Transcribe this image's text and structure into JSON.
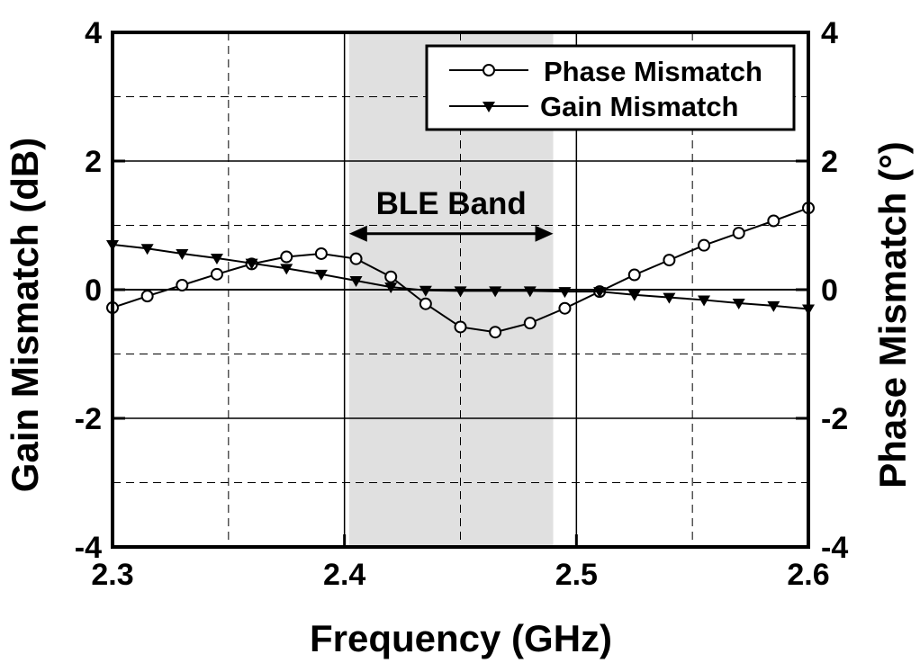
{
  "chart_data": {
    "type": "line",
    "xlabel": "Frequency (GHz)",
    "ylabel_left": "Gain Mismatch (dB)",
    "ylabel_right": "Phase Mismatch (°)",
    "xlim": [
      2.3,
      2.6
    ],
    "ylim_left": [
      -4,
      4
    ],
    "ylim_right": [
      -4,
      4
    ],
    "x_ticks": [
      "2.3",
      "2.4",
      "2.5",
      "2.6"
    ],
    "x_tick_values": [
      2.3,
      2.4,
      2.5,
      2.6
    ],
    "y_ticks_left": [
      "4",
      "2",
      "0",
      "-2",
      "-4"
    ],
    "y_ticks_right": [
      "4",
      "2",
      "0",
      "-2",
      "-4"
    ],
    "y_tick_values": [
      4,
      2,
      0,
      -2,
      -4
    ],
    "grid": true,
    "legend_position": "top-right",
    "shaded_band": {
      "x_start": 2.402,
      "x_end": 2.49,
      "color": "#e0e0e0"
    },
    "band_annotation": {
      "text": "BLE Band",
      "x_start": 2.402,
      "x_end": 2.49,
      "y": 0.87
    },
    "series": [
      {
        "name": "Phase Mismatch",
        "marker": "open-circle",
        "axis": "right",
        "x": [
          2.3,
          2.315,
          2.33,
          2.345,
          2.36,
          2.375,
          2.39,
          2.405,
          2.42,
          2.435,
          2.45,
          2.465,
          2.48,
          2.495,
          2.51,
          2.525,
          2.54,
          2.555,
          2.57,
          2.585,
          2.6
        ],
        "values": [
          -0.28,
          -0.1,
          0.07,
          0.24,
          0.4,
          0.51,
          0.56,
          0.48,
          0.2,
          -0.22,
          -0.58,
          -0.66,
          -0.52,
          -0.29,
          -0.03,
          0.23,
          0.46,
          0.69,
          0.88,
          1.07,
          1.27
        ]
      },
      {
        "name": "Gain Mismatch",
        "marker": "filled-down-triangle",
        "axis": "left",
        "x": [
          2.3,
          2.315,
          2.33,
          2.345,
          2.36,
          2.375,
          2.39,
          2.405,
          2.42,
          2.435,
          2.45,
          2.465,
          2.48,
          2.495,
          2.51,
          2.525,
          2.54,
          2.555,
          2.57,
          2.585,
          2.6
        ],
        "values": [
          0.7,
          0.64,
          0.56,
          0.49,
          0.41,
          0.33,
          0.24,
          0.14,
          0.04,
          -0.01,
          -0.02,
          -0.02,
          -0.02,
          -0.03,
          -0.03,
          -0.08,
          -0.12,
          -0.16,
          -0.21,
          -0.25,
          -0.3
        ]
      }
    ]
  }
}
